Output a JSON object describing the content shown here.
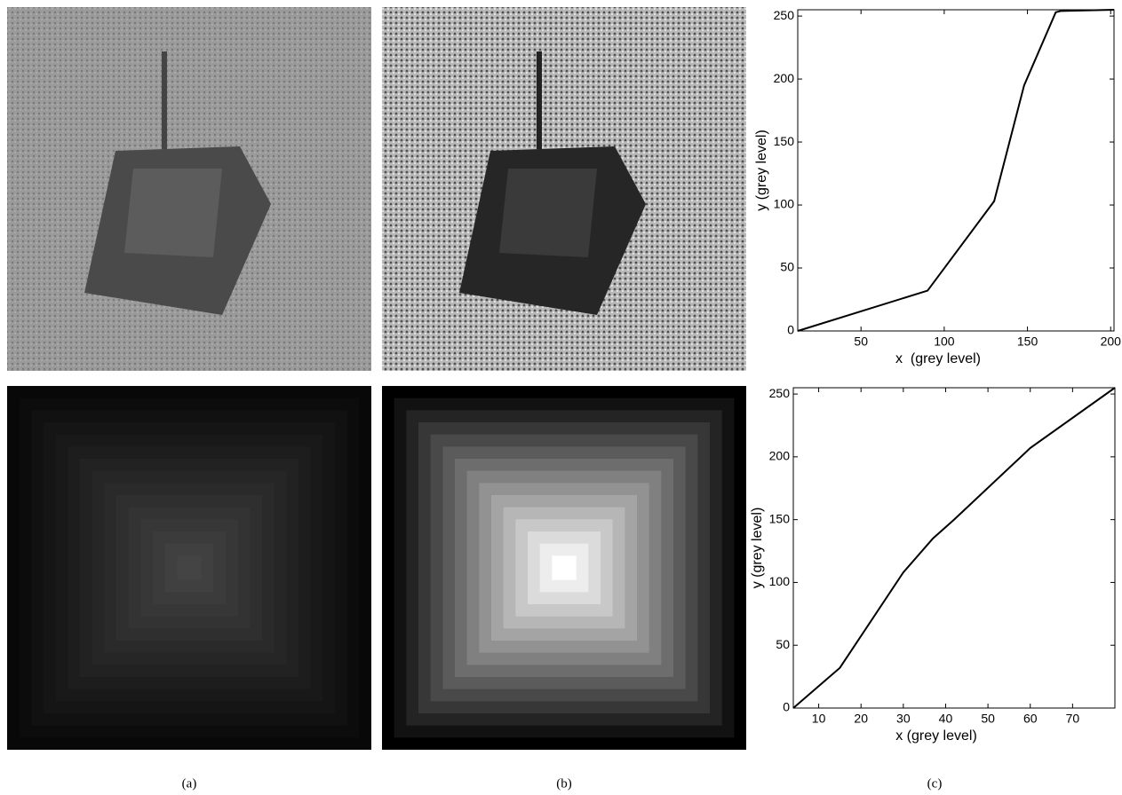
{
  "chart_data": [
    {
      "type": "line",
      "xlabel": "x  (grey level)",
      "ylabel": "y (grey level)",
      "x": [
        12,
        90,
        130,
        148,
        167,
        170,
        202
      ],
      "values": [
        0,
        32,
        103,
        195,
        253,
        254,
        255
      ],
      "color": "#000000",
      "xlim": [
        12,
        202
      ],
      "ylim": [
        0,
        255
      ],
      "xticks": [
        50,
        100,
        150,
        200
      ],
      "yticks": [
        0,
        50,
        100,
        150,
        200,
        250
      ]
    },
    {
      "type": "line",
      "xlabel": "x (grey level)",
      "ylabel": "y (grey level)",
      "x": [
        4,
        15,
        30,
        37,
        42,
        60,
        80
      ],
      "values": [
        0,
        32,
        108,
        135,
        150,
        207,
        255
      ],
      "color": "#000000",
      "xlim": [
        4,
        80
      ],
      "ylim": [
        0,
        255
      ],
      "xticks": [
        10,
        20,
        30,
        40,
        50,
        60,
        70
      ],
      "yticks": [
        0,
        50,
        100,
        150,
        200,
        250
      ]
    }
  ],
  "captions": [
    "(a)",
    "(b)",
    "(c)"
  ]
}
